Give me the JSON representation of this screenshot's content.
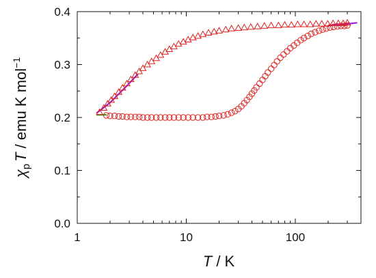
{
  "chart_data": {
    "type": "scatter",
    "x_scale": "log",
    "xlim": [
      1,
      400
    ],
    "ylim": [
      0,
      0.4
    ],
    "grid": false,
    "x_ticks": [
      {
        "value": 1,
        "label": "1"
      },
      {
        "value": 10,
        "label": "10"
      },
      {
        "value": 100,
        "label": "100"
      }
    ],
    "y_ticks": [
      {
        "value": 0.0,
        "label": "0.0"
      },
      {
        "value": 0.1,
        "label": "0.1"
      },
      {
        "value": 0.2,
        "label": "0.2"
      },
      {
        "value": 0.3,
        "label": "0.3"
      },
      {
        "value": 0.4,
        "label": "0.4"
      }
    ],
    "xlabel": {
      "var": "T",
      "unit": " / K"
    },
    "ylabel": {
      "chi": "χ",
      "sub": "p",
      "var": "T",
      "unit": " / emu K mol",
      "sup": "−1"
    },
    "series": [
      {
        "marker": "triangle",
        "color": "#e0201c",
        "points": [
          [
            1.6,
            0.21
          ],
          [
            1.75,
            0.218
          ],
          [
            1.9,
            0.226
          ],
          [
            2.05,
            0.233
          ],
          [
            2.2,
            0.24
          ],
          [
            2.4,
            0.248
          ],
          [
            2.6,
            0.256
          ],
          [
            2.85,
            0.264
          ],
          [
            3.1,
            0.272
          ],
          [
            3.4,
            0.28
          ],
          [
            3.7,
            0.287
          ],
          [
            4.0,
            0.293
          ],
          [
            4.4,
            0.3
          ],
          [
            4.8,
            0.306
          ],
          [
            5.3,
            0.312
          ],
          [
            5.8,
            0.318
          ],
          [
            6.4,
            0.324
          ],
          [
            7.0,
            0.329
          ],
          [
            7.7,
            0.334
          ],
          [
            8.5,
            0.339
          ],
          [
            9.4,
            0.343
          ],
          [
            10.4,
            0.347
          ],
          [
            11.5,
            0.351
          ],
          [
            12.8,
            0.354
          ],
          [
            14.2,
            0.357
          ],
          [
            16,
            0.36
          ],
          [
            18,
            0.362
          ],
          [
            20,
            0.364
          ],
          [
            23,
            0.366
          ],
          [
            26,
            0.368
          ],
          [
            30,
            0.369
          ],
          [
            34,
            0.37
          ],
          [
            39,
            0.371
          ],
          [
            45,
            0.372
          ],
          [
            52,
            0.373
          ],
          [
            60,
            0.374
          ],
          [
            70,
            0.374
          ],
          [
            80,
            0.375
          ],
          [
            92,
            0.375
          ],
          [
            105,
            0.376
          ],
          [
            120,
            0.376
          ],
          [
            137,
            0.376
          ],
          [
            155,
            0.377
          ],
          [
            175,
            0.377
          ],
          [
            198,
            0.377
          ],
          [
            222,
            0.378
          ],
          [
            248,
            0.378
          ],
          [
            275,
            0.378
          ],
          [
            300,
            0.379
          ]
        ]
      },
      {
        "marker": "circle",
        "color": "#e0201c",
        "points": [
          [
            1.85,
            0.204
          ],
          [
            2.0,
            0.203
          ],
          [
            2.2,
            0.203
          ],
          [
            2.4,
            0.202
          ],
          [
            2.6,
            0.202
          ],
          [
            2.85,
            0.201
          ],
          [
            3.1,
            0.201
          ],
          [
            3.4,
            0.201
          ],
          [
            3.7,
            0.201
          ],
          [
            4.0,
            0.2
          ],
          [
            4.4,
            0.2
          ],
          [
            4.8,
            0.2
          ],
          [
            5.3,
            0.2
          ],
          [
            5.8,
            0.2
          ],
          [
            6.4,
            0.2
          ],
          [
            7.0,
            0.2
          ],
          [
            7.7,
            0.2
          ],
          [
            8.5,
            0.2
          ],
          [
            9.4,
            0.2
          ],
          [
            10.4,
            0.2
          ],
          [
            11.5,
            0.2
          ],
          [
            12.8,
            0.2
          ],
          [
            14.2,
            0.2
          ],
          [
            15.5,
            0.201
          ],
          [
            17,
            0.201
          ],
          [
            18.5,
            0.202
          ],
          [
            20,
            0.203
          ],
          [
            22,
            0.204
          ],
          [
            24,
            0.206
          ],
          [
            26,
            0.209
          ],
          [
            28,
            0.212
          ],
          [
            30,
            0.216
          ],
          [
            32,
            0.221
          ],
          [
            34,
            0.227
          ],
          [
            36,
            0.233
          ],
          [
            38,
            0.239
          ],
          [
            40,
            0.245
          ],
          [
            42,
            0.251
          ],
          [
            44,
            0.257
          ],
          [
            47,
            0.264
          ],
          [
            50,
            0.271
          ],
          [
            53,
            0.278
          ],
          [
            56,
            0.285
          ],
          [
            60,
            0.292
          ],
          [
            64,
            0.299
          ],
          [
            68,
            0.306
          ],
          [
            73,
            0.313
          ],
          [
            78,
            0.319
          ],
          [
            84,
            0.325
          ],
          [
            90,
            0.331
          ],
          [
            97,
            0.336
          ],
          [
            104,
            0.341
          ],
          [
            112,
            0.346
          ],
          [
            120,
            0.35
          ],
          [
            130,
            0.354
          ],
          [
            140,
            0.358
          ],
          [
            152,
            0.361
          ],
          [
            165,
            0.364
          ],
          [
            178,
            0.366
          ],
          [
            192,
            0.368
          ],
          [
            208,
            0.37
          ],
          [
            225,
            0.371
          ],
          [
            243,
            0.372
          ],
          [
            262,
            0.373
          ],
          [
            282,
            0.373
          ],
          [
            300,
            0.374
          ]
        ]
      }
    ],
    "fit_lines": [
      {
        "color": "#9b1fd0",
        "points": [
          [
            1.5,
            0.208
          ],
          [
            2.0,
            0.228
          ],
          [
            2.8,
            0.258
          ],
          [
            3.6,
            0.282
          ]
        ]
      },
      {
        "color": "#22a022",
        "points": [
          [
            1.5,
            0.205
          ],
          [
            1.85,
            0.205
          ]
        ]
      },
      {
        "color": "#9b1fd0",
        "points": [
          [
            200,
            0.374
          ],
          [
            280,
            0.376
          ],
          [
            370,
            0.379
          ]
        ]
      }
    ]
  }
}
